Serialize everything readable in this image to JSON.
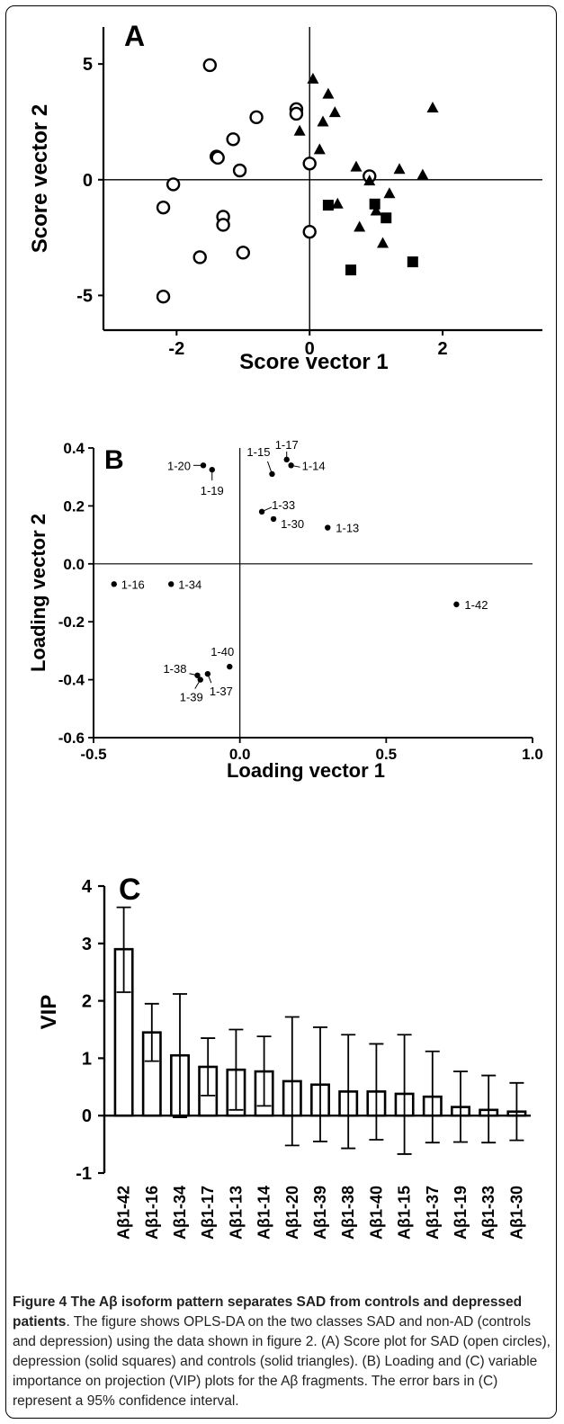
{
  "figure_caption": {
    "bold": "Figure 4 The Aβ isoform pattern separates SAD from controls and depressed patients",
    "text": ". The figure shows OPLS-DA on the two classes SAD and non-AD (controls and depression) using the data shown in figure 2. (A) Score plot for SAD (open circles), depression (solid squares) and controls (solid triangles). (B) Loading and (C) variable importance on projection (VIP) plots for the Aβ fragments. The error bars in (C) represent a 95% confidence interval."
  },
  "chart_data": [
    {
      "panel": "A",
      "type": "scatter",
      "xlabel": "Score vector 1",
      "ylabel": "Score vector 2",
      "xlim": [
        -3.1,
        3.5
      ],
      "ylim": [
        -6.5,
        6.6
      ],
      "xticks": [
        -2,
        0,
        2
      ],
      "yticks": [
        -5,
        0,
        5
      ],
      "series": [
        {
          "marker": "open-circle",
          "points": [
            [
              -1.5,
              4.95
            ],
            [
              -0.8,
              2.7
            ],
            [
              -0.2,
              3.05
            ],
            [
              -0.2,
              2.85
            ],
            [
              -1.15,
              1.75
            ],
            [
              -1.4,
              1.0
            ],
            [
              -1.38,
              0.95
            ],
            [
              -1.05,
              0.4
            ],
            [
              0.0,
              0.7
            ],
            [
              -2.05,
              -0.2
            ],
            [
              -2.2,
              -1.2
            ],
            [
              -1.3,
              -1.6
            ],
            [
              -1.3,
              -1.95
            ],
            [
              -1.0,
              -3.15
            ],
            [
              -1.65,
              -3.35
            ],
            [
              0.0,
              -2.25
            ],
            [
              0.9,
              0.15
            ],
            [
              -2.2,
              -5.05
            ]
          ]
        },
        {
          "marker": "solid-triangle",
          "points": [
            [
              0.05,
              4.35
            ],
            [
              0.28,
              3.7
            ],
            [
              0.38,
              2.9
            ],
            [
              0.2,
              2.5
            ],
            [
              -0.15,
              2.1
            ],
            [
              1.85,
              3.1
            ],
            [
              0.15,
              1.3
            ],
            [
              0.7,
              0.55
            ],
            [
              0.9,
              -0.05
            ],
            [
              1.35,
              0.45
            ],
            [
              1.7,
              0.2
            ],
            [
              0.42,
              -1.05
            ],
            [
              1.2,
              -0.6
            ],
            [
              1.0,
              -1.35
            ],
            [
              0.75,
              -2.05
            ],
            [
              1.1,
              -2.75
            ]
          ]
        },
        {
          "marker": "solid-square",
          "points": [
            [
              0.28,
              -1.1
            ],
            [
              0.98,
              -1.05
            ],
            [
              1.15,
              -1.65
            ],
            [
              0.62,
              -3.9
            ],
            [
              1.55,
              -3.55
            ]
          ]
        }
      ]
    },
    {
      "panel": "B",
      "type": "scatter",
      "xlabel": "Loading  vector  1",
      "ylabel": "Loading vector 2",
      "xlim": [
        -0.5,
        1.0
      ],
      "ylim": [
        -0.6,
        0.4
      ],
      "xticks": [
        "-0.5",
        "0.0",
        "0.5",
        "1.0"
      ],
      "yticks": [
        "0.4",
        "0.2",
        "0.0",
        "-0.2",
        "-0.4",
        "-0.6"
      ],
      "points": [
        {
          "label": "1-42",
          "x": 0.74,
          "y": -0.14
        },
        {
          "label": "1-17",
          "x": 0.16,
          "y": 0.36
        },
        {
          "label": "1-14",
          "x": 0.175,
          "y": 0.34
        },
        {
          "label": "1-15",
          "x": 0.11,
          "y": 0.31
        },
        {
          "label": "1-20",
          "x": -0.125,
          "y": 0.34
        },
        {
          "label": "1-19",
          "x": -0.095,
          "y": 0.325
        },
        {
          "label": "1-33",
          "x": 0.075,
          "y": 0.18
        },
        {
          "label": "1-30",
          "x": 0.115,
          "y": 0.155
        },
        {
          "label": "1-13",
          "x": 0.3,
          "y": 0.125
        },
        {
          "label": "1-16",
          "x": -0.43,
          "y": -0.07
        },
        {
          "label": "1-34",
          "x": -0.235,
          "y": -0.07
        },
        {
          "label": "1-40",
          "x": -0.035,
          "y": -0.355
        },
        {
          "label": "1-38",
          "x": -0.145,
          "y": -0.385
        },
        {
          "label": "1-39",
          "x": -0.135,
          "y": -0.4
        },
        {
          "label": "1-37",
          "x": -0.11,
          "y": -0.38
        }
      ]
    },
    {
      "panel": "C",
      "type": "bar",
      "ylabel": "VIP",
      "ylim": [
        -1,
        4
      ],
      "yticks": [
        "-1",
        "0",
        "1",
        "2",
        "3",
        "4"
      ],
      "categories": [
        "Aβ1-42",
        "Aβ1-16",
        "Aβ1-34",
        "Aβ1-17",
        "Aβ1-13",
        "Aβ1-14",
        "Aβ1-20",
        "Aβ1-39",
        "Aβ1-38",
        "Aβ1-40",
        "Aβ1-15",
        "Aβ1-37",
        "Aβ1-19",
        "Aβ1-33",
        "Aβ1-30"
      ],
      "values": [
        2.9,
        1.45,
        1.05,
        0.85,
        0.8,
        0.77,
        0.6,
        0.54,
        0.42,
        0.42,
        0.38,
        0.33,
        0.15,
        0.1,
        0.07
      ],
      "err_low": [
        2.15,
        0.95,
        -0.03,
        0.35,
        0.1,
        0.17,
        -0.52,
        -0.45,
        -0.57,
        -0.42,
        -0.67,
        -0.47,
        -0.46,
        -0.47,
        -0.43
      ],
      "err_high": [
        3.63,
        1.95,
        2.12,
        1.35,
        1.5,
        1.38,
        1.72,
        1.54,
        1.41,
        1.25,
        1.41,
        1.12,
        0.77,
        0.7,
        0.57
      ]
    }
  ]
}
